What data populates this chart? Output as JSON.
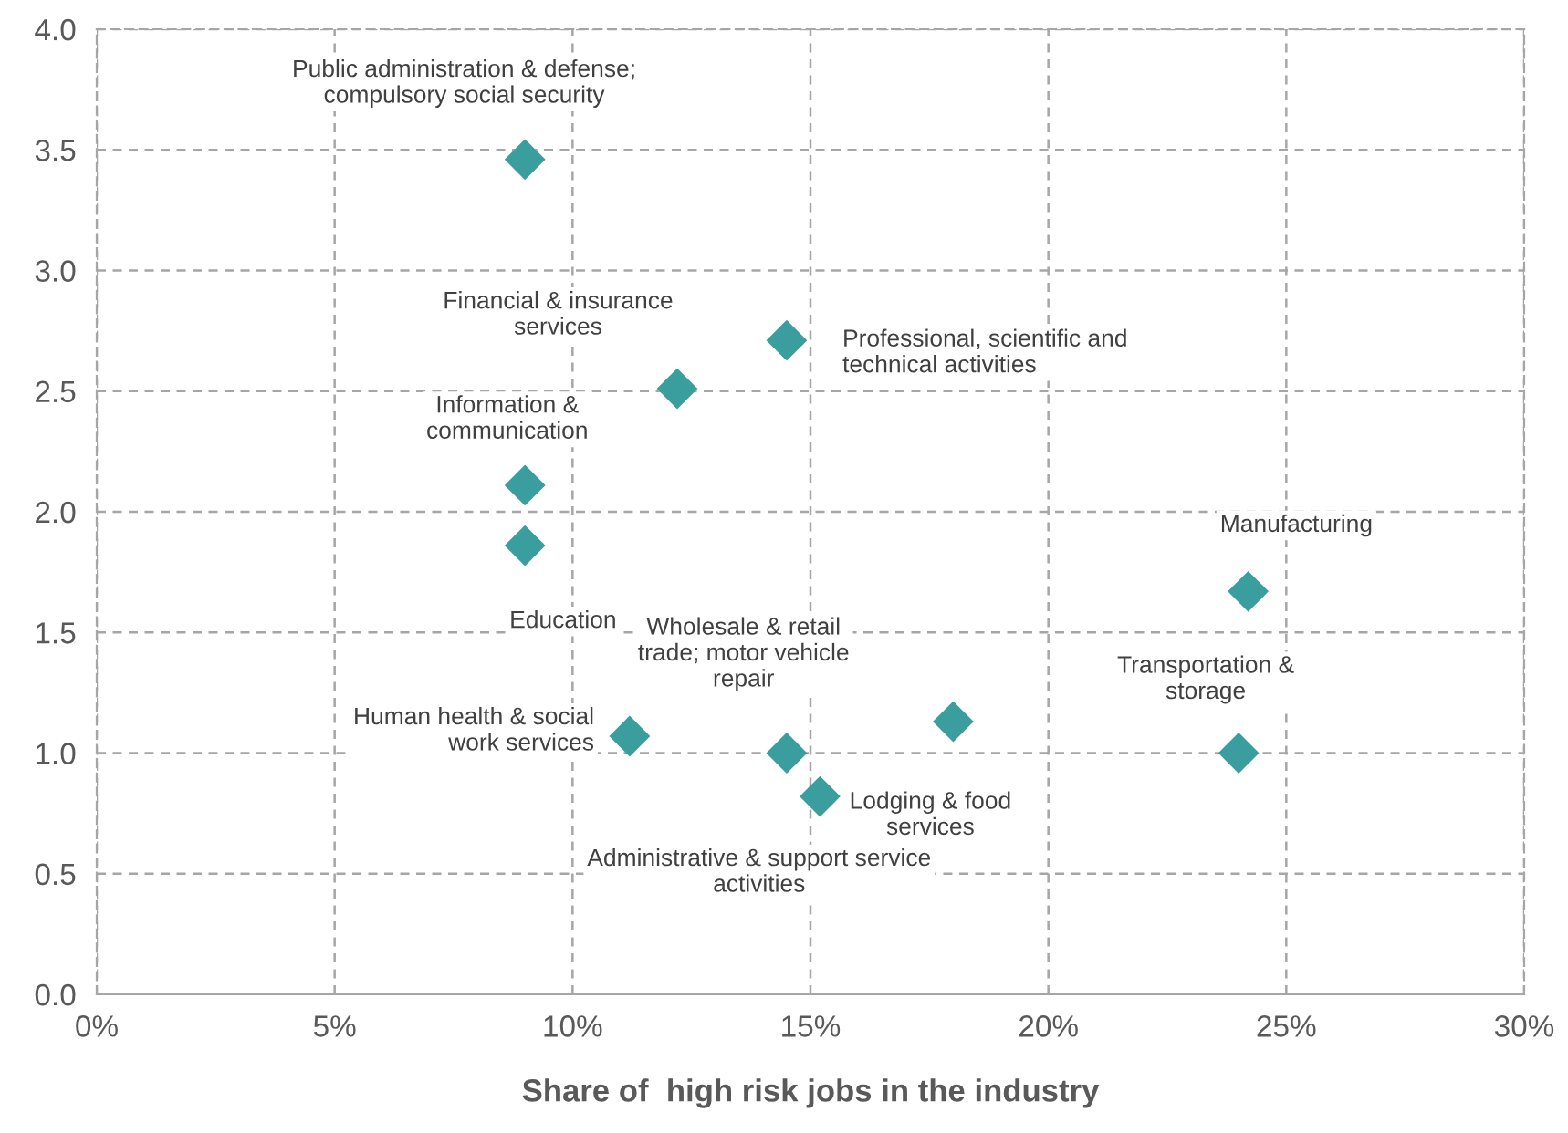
{
  "chart_data": {
    "type": "scatter",
    "xlabel": "Share of  high risk jobs in the industry",
    "x": [
      9.0,
      12.2,
      14.5,
      9.0,
      9.0,
      24.2,
      24.0,
      18.0,
      14.5,
      11.2,
      15.2
    ],
    "values": [
      3.46,
      2.51,
      2.71,
      2.11,
      1.86,
      1.67,
      1.0,
      1.13,
      1.0,
      1.07,
      0.82
    ],
    "color": "#3a9e9e",
    "marker": "diamond",
    "xlim": [
      0,
      30
    ],
    "xticks": [
      {
        "value": 0,
        "label": "0%"
      },
      {
        "value": 5,
        "label": "5%"
      },
      {
        "value": 10,
        "label": "10%"
      },
      {
        "value": 15,
        "label": "15%"
      },
      {
        "value": 20,
        "label": "20%"
      },
      {
        "value": 25,
        "label": "25%"
      },
      {
        "value": 30,
        "label": "30%"
      }
    ],
    "ylim": [
      0,
      4.0
    ],
    "yticks": [
      {
        "value": 0,
        "label": "0.0"
      },
      {
        "value": 0.5,
        "label": "0.5"
      },
      {
        "value": 1.0,
        "label": "1.0"
      },
      {
        "value": 1.5,
        "label": "1.5"
      },
      {
        "value": 2.0,
        "label": "2.0"
      },
      {
        "value": 2.5,
        "label": "2.5"
      },
      {
        "value": 3.0,
        "label": "3.0"
      },
      {
        "value": 3.5,
        "label": "3.5"
      },
      {
        "value": 4.0,
        "label": "4.0"
      }
    ],
    "grid": true,
    "annotations": [
      {
        "text": "Public administration & defense;\ncompulsory social security",
        "x": 9.0,
        "y": 3.46
      },
      {
        "text": "Financial & insurance\nservices",
        "x": 12.2,
        "y": 2.51
      },
      {
        "text": "Professional, scientific and\ntechnical activities",
        "x": 14.5,
        "y": 2.71
      },
      {
        "text": "Information &\ncommunication",
        "x": 9.0,
        "y": 2.11
      },
      {
        "text": "Education",
        "x": 9.0,
        "y": 1.86
      },
      {
        "text": "Manufacturing",
        "x": 24.2,
        "y": 1.67
      },
      {
        "text": "Transportation &\nstorage",
        "x": 24.0,
        "y": 1.0
      },
      {
        "text": "Lodging & food\nservices",
        "x": 18.0,
        "y": 1.13
      },
      {
        "text": "Wholesale & retail\ntrade; motor vehicle\nrepair",
        "x": 14.5,
        "y": 1.0
      },
      {
        "text": "Human health & social\nwork services",
        "x": 11.2,
        "y": 1.07
      },
      {
        "text": "Administrative & support service\nactivities",
        "x": 15.2,
        "y": 0.82
      }
    ]
  }
}
